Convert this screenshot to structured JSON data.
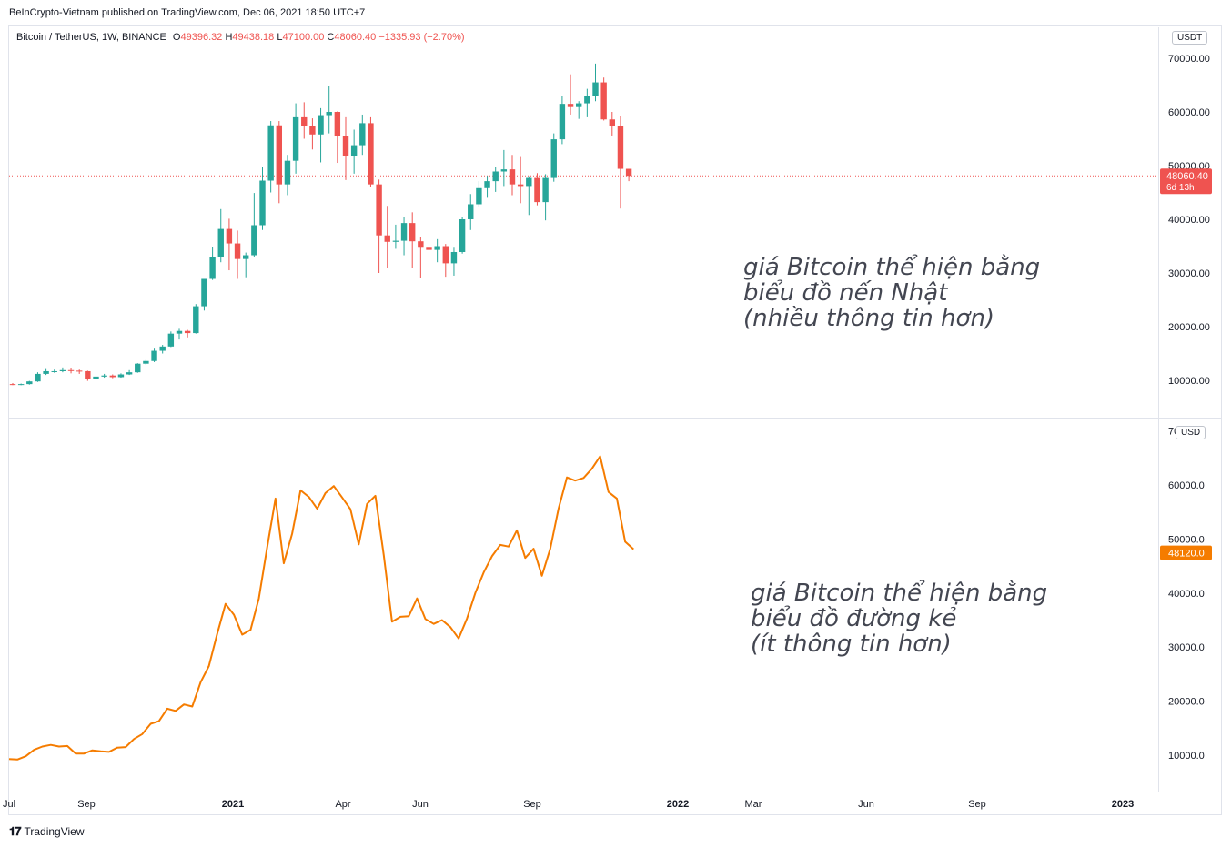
{
  "published": "BeInCrypto-Vietnam published on TradingView.com, Dec 06, 2021 18:50 UTC+7",
  "legend": {
    "symbol": "Bitcoin / TetherUS, 1W, BINANCE",
    "o_label": "O",
    "o_val": "49396.32",
    "h_label": "H",
    "h_val": "49438.18",
    "l_label": "L",
    "l_val": "47100.00",
    "c_label": "C",
    "c_val": "48060.40",
    "change": "−1335.93 (−2.70%)"
  },
  "top_unit": "USDT",
  "bottom_unit": "USD",
  "top_price_tag": "48060.40",
  "top_countdown": "6d 13h",
  "bottom_price_tag": "48120.0",
  "top_annotation": "giá Bitcoin thể hiện bằng\nbiểu đồ nến Nhật\n(nhiều thông tin hơn)",
  "bottom_annotation": "giá Bitcoin thể hiện bằng\nbiểu đồ đường kẻ\n(ít thông tin hơn)",
  "footer_brand": "TradingView",
  "colors": {
    "up": "#26a69a",
    "down": "#ef5350",
    "line": "#f57c00",
    "grid": "#e0e3eb"
  },
  "chart_data": [
    {
      "type": "candlestick",
      "y_ticks": [
        "70000.00",
        "60000.00",
        "50000.00",
        "40000.00",
        "30000.00",
        "20000.00",
        "10000.00"
      ],
      "ylim": [
        5000,
        73000
      ],
      "x_ticks": [
        "Jul",
        "Sep",
        "2021",
        "Apr",
        "Jun",
        "Sep",
        "2022",
        "Mar",
        "Jun",
        "Sep",
        "2023"
      ],
      "candles": [
        [
          9300,
          9500,
          9100,
          9200
        ],
        [
          9200,
          9400,
          9100,
          9300
        ],
        [
          9300,
          9900,
          9200,
          9800
        ],
        [
          9800,
          11500,
          9700,
          11200
        ],
        [
          11200,
          12100,
          11000,
          11700
        ],
        [
          11700,
          12000,
          11400,
          11700
        ],
        [
          11700,
          12400,
          11500,
          11900
        ],
        [
          11900,
          12200,
          11300,
          11800
        ],
        [
          11800,
          12000,
          11200,
          11700
        ],
        [
          11700,
          11800,
          9900,
          10300
        ],
        [
          10300,
          10800,
          10000,
          10700
        ],
        [
          10700,
          11200,
          10500,
          10900
        ],
        [
          10900,
          11100,
          10400,
          10600
        ],
        [
          10600,
          11300,
          10500,
          11100
        ],
        [
          11100,
          11900,
          11000,
          11500
        ],
        [
          11500,
          13200,
          11400,
          13100
        ],
        [
          13100,
          13800,
          12900,
          13600
        ],
        [
          13600,
          15900,
          13400,
          15500
        ],
        [
          15500,
          16600,
          15000,
          16300
        ],
        [
          16300,
          19100,
          16200,
          18700
        ],
        [
          18700,
          19600,
          17600,
          19200
        ],
        [
          19200,
          19400,
          18000,
          18800
        ],
        [
          18800,
          24200,
          18700,
          23800
        ],
        [
          23800,
          28400,
          23000,
          28900
        ],
        [
          28900,
          34800,
          28700,
          33000
        ],
        [
          33000,
          41900,
          32000,
          38200
        ],
        [
          38200,
          40100,
          30500,
          35500
        ],
        [
          35500,
          37900,
          28900,
          32600
        ],
        [
          32600,
          33800,
          29200,
          33300
        ],
        [
          33300,
          44900,
          32900,
          38900
        ],
        [
          38900,
          49700,
          38000,
          47200
        ],
        [
          47200,
          58300,
          45000,
          57500
        ],
        [
          57500,
          58300,
          43000,
          46500
        ],
        [
          46500,
          52000,
          44500,
          50900
        ],
        [
          50900,
          61600,
          48500,
          59000
        ],
        [
          59000,
          61800,
          55000,
          57300
        ],
        [
          57300,
          58800,
          53000,
          55800
        ],
        [
          55800,
          60700,
          50600,
          59400
        ],
        [
          59400,
          64800,
          56000,
          60000
        ],
        [
          60000,
          60100,
          50500,
          55500
        ],
        [
          55500,
          59000,
          47300,
          51800
        ],
        [
          51800,
          56700,
          48500,
          53800
        ],
        [
          53800,
          59500,
          52000,
          57900
        ],
        [
          57900,
          59000,
          46000,
          46500
        ],
        [
          46500,
          47400,
          30000,
          37000
        ],
        [
          37000,
          42500,
          31000,
          35800
        ],
        [
          35800,
          39000,
          34500,
          36000
        ],
        [
          36000,
          40500,
          33300,
          39300
        ],
        [
          39300,
          41300,
          31000,
          35900
        ],
        [
          35900,
          36700,
          29000,
          34700
        ],
        [
          34700,
          35900,
          31900,
          34300
        ],
        [
          34300,
          36300,
          32000,
          35000
        ],
        [
          35000,
          35400,
          29300,
          31800
        ],
        [
          31800,
          34700,
          29500,
          33900
        ],
        [
          33900,
          40500,
          33600,
          40000
        ],
        [
          40000,
          44700,
          38000,
          42800
        ],
        [
          42800,
          47100,
          42400,
          45800
        ],
        [
          45800,
          48100,
          44000,
          47100
        ],
        [
          47100,
          49800,
          45100,
          48900
        ],
        [
          48900,
          52900,
          46200,
          49300
        ],
        [
          49300,
          52000,
          44500,
          46500
        ],
        [
          46500,
          51600,
          43000,
          46200
        ],
        [
          46200,
          48000,
          40800,
          47700
        ],
        [
          47700,
          48600,
          42600,
          43200
        ],
        [
          43200,
          48400,
          39800,
          47700
        ],
        [
          47700,
          56000,
          47000,
          54900
        ],
        [
          54900,
          62900,
          54000,
          61500
        ],
        [
          61500,
          67000,
          59500,
          60900
        ],
        [
          60900,
          62000,
          58700,
          61600
        ],
        [
          61600,
          64300,
          59000,
          63000
        ],
        [
          63000,
          69000,
          62000,
          65500
        ],
        [
          65500,
          66400,
          58400,
          58600
        ],
        [
          58600,
          60000,
          55600,
          57300
        ],
        [
          57300,
          59200,
          42000,
          49400
        ],
        [
          49400,
          49400,
          47100,
          48100
        ]
      ]
    },
    {
      "type": "line",
      "y_ticks": [
        "70000.0",
        "60000.0",
        "50000.0",
        "40000.0",
        "30000.0",
        "20000.0",
        "10000.0"
      ],
      "ylim": [
        3000,
        70600
      ],
      "values": [
        9300,
        9200,
        9800,
        11000,
        11600,
        11900,
        11600,
        11700,
        10300,
        10300,
        10900,
        10700,
        10600,
        11400,
        11500,
        13000,
        13900,
        15800,
        16300,
        18600,
        18200,
        19400,
        19000,
        23500,
        26500,
        32500,
        38000,
        36000,
        32300,
        33200,
        39000,
        48500,
        57500,
        45500,
        51000,
        59000,
        57800,
        55600,
        58500,
        59800,
        57700,
        55500,
        49000,
        56500,
        58000,
        47000,
        34700,
        35600,
        35700,
        39000,
        35200,
        34300,
        35000,
        33700,
        31600,
        35300,
        40000,
        43800,
        46800,
        48900,
        48600,
        51600,
        46500,
        48200,
        43200,
        48200,
        55600,
        61400,
        60800,
        61300,
        63000,
        65300,
        58700,
        57500,
        49500,
        48120
      ],
      "x_ticks": [
        "Jul",
        "Sep",
        "2021",
        "Apr",
        "Jun",
        "Sep",
        "2022",
        "Mar",
        "Jun",
        "Sep",
        "2023"
      ]
    }
  ]
}
